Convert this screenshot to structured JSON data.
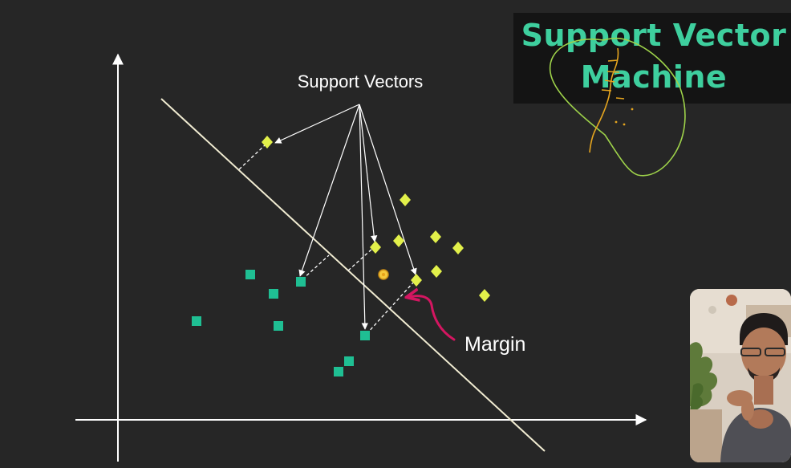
{
  "title": {
    "line1": "Support Vector",
    "line2": "Machine"
  },
  "labels": {
    "support_vectors": "Support Vectors",
    "margin": "Margin"
  },
  "colors": {
    "background": "#262626",
    "title": "#3ecf9e",
    "class_square": "#1fbf93",
    "class_diamond": "#e2f04a",
    "hyperplane": "#f1ecd2",
    "margin_arrow": "#d41661",
    "scribble_circle": "#9ed24a",
    "scribble_line": "#e5a51f"
  },
  "icons": {
    "webcam": "presenter-webcam"
  }
}
